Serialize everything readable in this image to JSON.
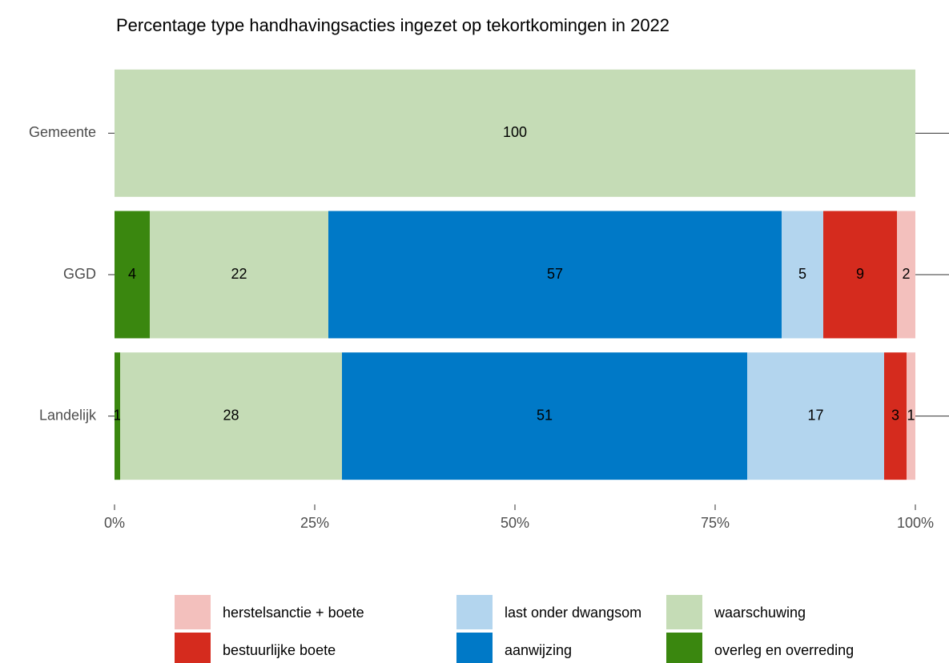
{
  "chart_data": {
    "type": "stacked_barh",
    "title": "Percentage type handhavingsacties ingezet op tekortkomingen in 2022",
    "categories": [
      "Gemeente",
      "GGD",
      "Landelijk"
    ],
    "series": [
      {
        "name": "overleg en overreding",
        "color": "#3a870f",
        "values": [
          null,
          4.4,
          0.7
        ],
        "value_labels": [
          null,
          "4",
          "1"
        ]
      },
      {
        "name": "waarschuwing",
        "color": "#c5dcb6",
        "values": [
          100,
          22.3,
          27.7
        ],
        "value_labels": [
          "100",
          "22",
          "28"
        ]
      },
      {
        "name": "aanwijzing",
        "color": "#0079c7",
        "values": [
          null,
          56.6,
          50.6
        ],
        "value_labels": [
          null,
          "57",
          "51"
        ]
      },
      {
        "name": "last onder dwangsom",
        "color": "#b3d5ee",
        "values": [
          null,
          5.2,
          17.1
        ],
        "value_labels": [
          null,
          "5",
          "17"
        ]
      },
      {
        "name": "bestuurlijke boete",
        "color": "#d52b1e",
        "values": [
          null,
          9.2,
          2.8
        ],
        "value_labels": [
          null,
          "9",
          "3"
        ]
      },
      {
        "name": "herstelsanctie + boete",
        "color": "#f3c0bd",
        "values": [
          null,
          2.3,
          1.1
        ],
        "value_labels": [
          null,
          "2",
          "1"
        ]
      }
    ],
    "xlim": [
      0,
      100
    ],
    "xticks": [
      {
        "value": 0,
        "label": "0%"
      },
      {
        "value": 25,
        "label": "25%"
      },
      {
        "value": 50,
        "label": "50%"
      },
      {
        "value": 75,
        "label": "75%"
      },
      {
        "value": 100,
        "label": "100%"
      }
    ]
  }
}
